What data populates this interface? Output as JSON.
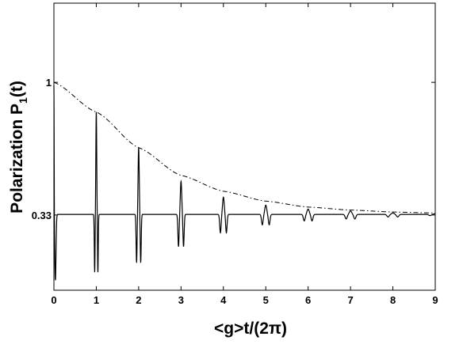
{
  "chart_data": {
    "type": "line",
    "xlabel": "<g>t/(2π)",
    "ylabel_main": "Polarization  P",
    "ylabel_subscript": "1",
    "ylabel_suffix": "(t)",
    "xlim": [
      0,
      9
    ],
    "ylim": [
      -0.05,
      1.4
    ],
    "x_ticks": [
      0,
      1,
      2,
      3,
      4,
      5,
      6,
      7,
      8,
      9
    ],
    "x_tick_labels": [
      "0",
      "1",
      "2",
      "3",
      "4",
      "5",
      "6",
      "7",
      "8",
      "9"
    ],
    "y_ticks": [
      0.33,
      1
    ],
    "y_tick_labels": [
      "0.33",
      "1"
    ],
    "grid": false,
    "legend": "none",
    "baseline": 0.333,
    "series": [
      {
        "style": "solid",
        "color": "#000000",
        "description_points": {
          "revival_times": [
            0,
            1,
            2,
            3,
            4,
            5,
            6,
            7,
            8,
            9
          ],
          "peak_max": [
            1.0,
            0.85,
            0.67,
            0.5,
            0.42,
            0.38,
            0.36,
            0.35,
            0.34,
            0.337
          ],
          "trough_min": [
            0.0,
            0.04,
            0.09,
            0.17,
            0.24,
            0.28,
            0.3,
            0.31,
            0.32,
            0.327
          ]
        }
      },
      {
        "style": "dash-dot",
        "color": "#000000",
        "x": [
          0,
          1,
          2,
          3,
          4,
          5,
          6,
          7,
          8,
          9
        ],
        "y": [
          1.0,
          0.85,
          0.67,
          0.53,
          0.45,
          0.4,
          0.37,
          0.355,
          0.345,
          0.34
        ]
      }
    ]
  }
}
